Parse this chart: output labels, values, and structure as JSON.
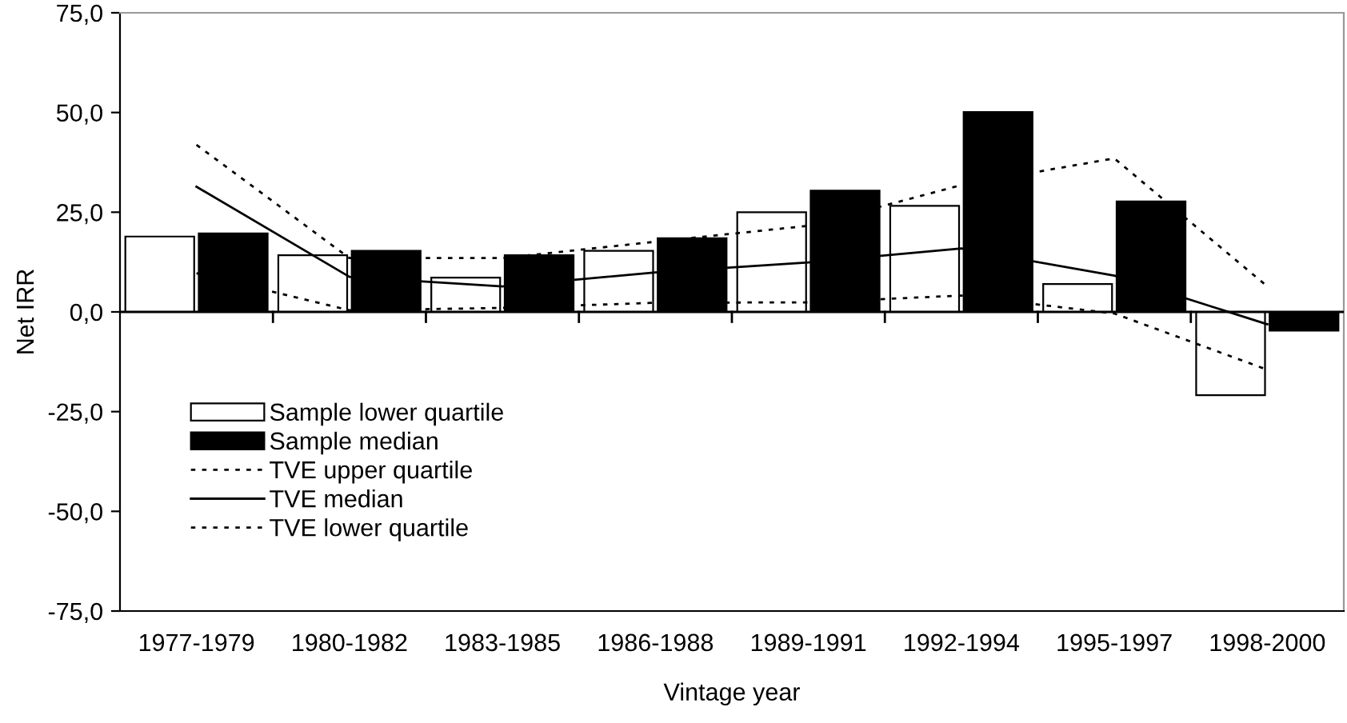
{
  "chart_data": {
    "type": "bar",
    "xlabel": "Vintage year",
    "ylabel": "Net IRR",
    "categories": [
      "1977-1979",
      "1980-1982",
      "1983-1985",
      "1986-1988",
      "1989-1991",
      "1992-1994",
      "1995-1997",
      "1998-2000"
    ],
    "series": [
      {
        "name": "Sample lower quartile",
        "color": "#ffffff",
        "values": [
          18.9,
          14.2,
          8.6,
          15.3,
          25.0,
          26.6,
          7.0,
          -20.9
        ]
      },
      {
        "name": "Sample median",
        "color": "#000000",
        "values": [
          19.7,
          15.3,
          14.2,
          18.5,
          30.4,
          50.1,
          27.7,
          -4.7
        ]
      },
      {
        "name": "TVE upper quartile",
        "type": "line",
        "color": "#000000",
        "line_style": "dotted",
        "values": [
          41.9,
          13.5,
          13.5,
          17.6,
          21.6,
          31.8,
          38.5,
          6.4
        ]
      },
      {
        "name": "TVE median",
        "type": "line",
        "color": "#000000",
        "line_style": "solid",
        "values": [
          31.4,
          8.8,
          6.4,
          9.9,
          12.4,
          15.9,
          9.1,
          -3.1
        ]
      },
      {
        "name": "TVE lower quartile",
        "type": "line",
        "color": "#000000",
        "line_style": "dotted",
        "values": [
          9.7,
          0.4,
          1.0,
          2.3,
          2.4,
          4.1,
          -0.4,
          -14.5
        ]
      }
    ],
    "ylim": [
      -75,
      75
    ],
    "yticks": [
      {
        "value": -75,
        "label": "-75,0"
      },
      {
        "value": -50,
        "label": "-50,0"
      },
      {
        "value": -25,
        "label": "-25,0"
      },
      {
        "value": 0,
        "label": "0,0"
      },
      {
        "value": 25,
        "label": "25,0"
      },
      {
        "value": 50,
        "label": "50,0"
      },
      {
        "value": 75,
        "label": "75,0"
      }
    ],
    "ref_lines": [
      {
        "axis": "y",
        "value": 0,
        "color": "#000000"
      }
    ],
    "legend": "lower left",
    "grid": false
  }
}
